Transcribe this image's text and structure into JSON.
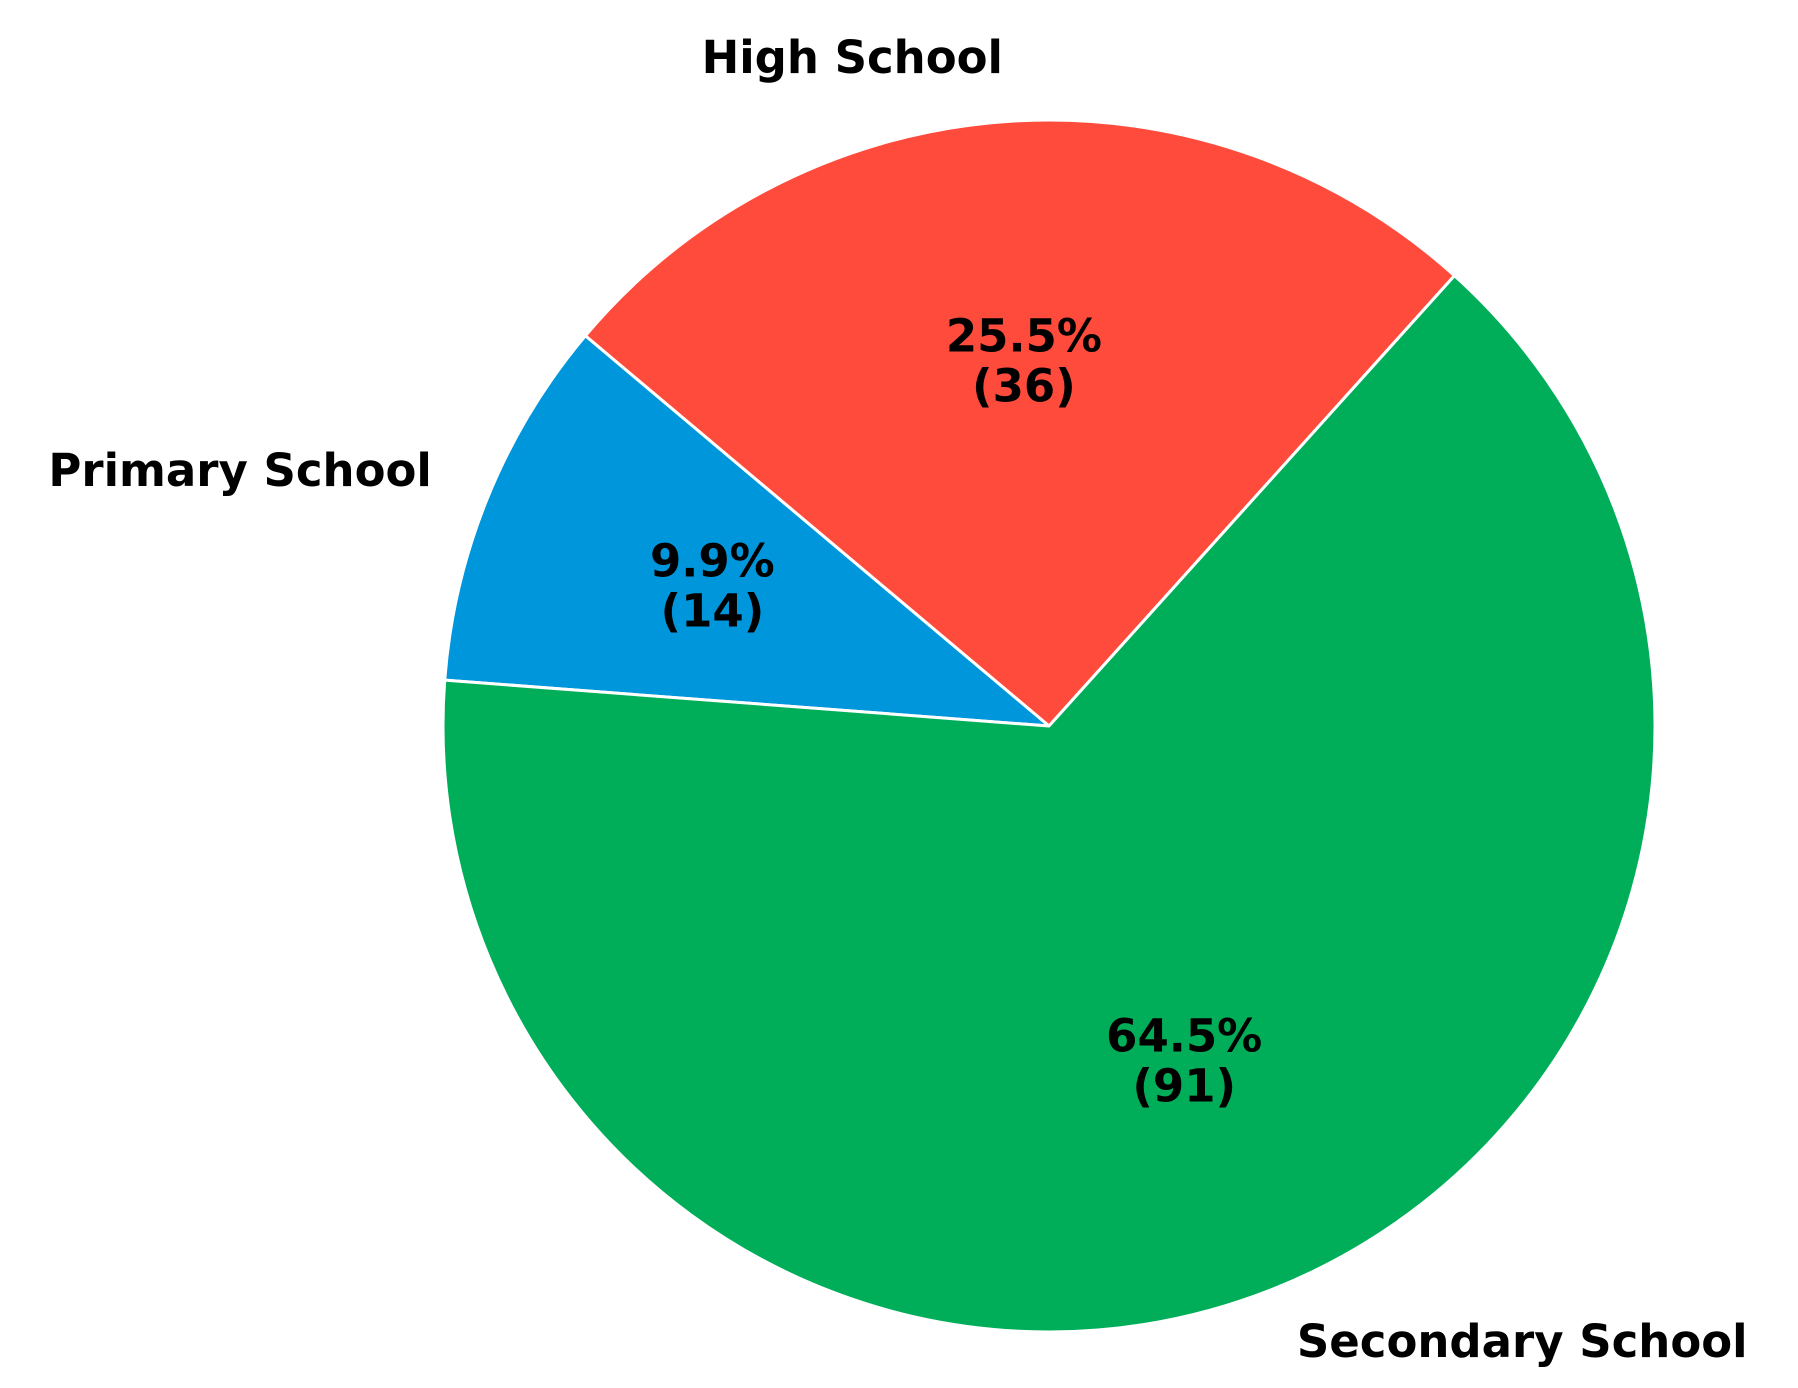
{
  "chart_data": {
    "type": "pie",
    "categories": [
      "High School",
      "Primary School",
      "Secondary School"
    ],
    "values": [
      36,
      14,
      91
    ],
    "value_labels": [
      "(36)",
      "(14)",
      "(91)"
    ],
    "percentages": [
      25.5,
      9.9,
      64.5
    ],
    "percentage_labels": [
      "25.5%",
      "9.9%",
      "64.5%"
    ],
    "colors": [
      "#ff4b3c",
      "#0096dc",
      "#00ae5a"
    ],
    "startangle": 48
  }
}
